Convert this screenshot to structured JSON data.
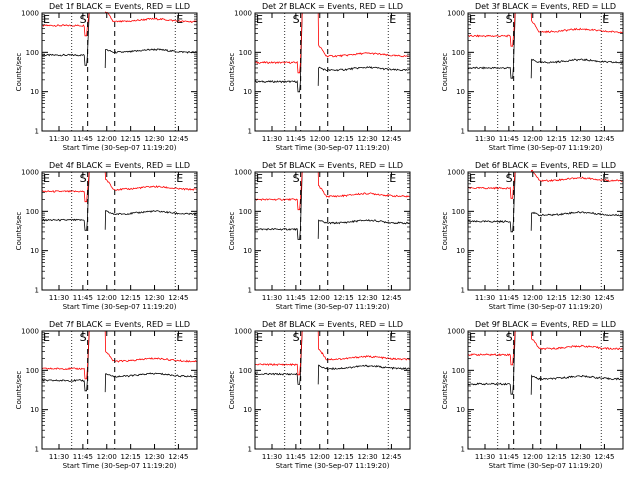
{
  "figure": {
    "xlabel": "Start Time (30-Sep-07 11:19:20)",
    "ylabel": "Counts/sec",
    "x_ticks": [
      "11:30",
      "11:45",
      "12:00",
      "12:15",
      "12:30",
      "12:45"
    ],
    "y_ticks": [
      "1",
      "10",
      "100",
      "1000"
    ],
    "markers": {
      "start": "E",
      "source": "S",
      "end": "E"
    },
    "colors": {
      "events": "#000000",
      "lld": "#ff0000",
      "axes": "#000000"
    }
  },
  "chart_data": [
    {
      "type": "line",
      "title": "Det 1f BLACK = Events, RED = LLD",
      "x_range": [
        "11:19:20",
        "12:56:40"
      ],
      "ylim": [
        1,
        1000
      ],
      "y_scale": "log",
      "series": [
        {
          "name": "Events",
          "color": "#000000",
          "levels": {
            "before": 85,
            "after": 100
          }
        },
        {
          "name": "LLD",
          "color": "#ff0000",
          "levels": {
            "before": 480,
            "after": 600
          }
        }
      ]
    },
    {
      "type": "line",
      "title": "Det 2f BLACK = Events, RED = LLD",
      "x_range": [
        "11:19:20",
        "12:56:40"
      ],
      "ylim": [
        1,
        1000
      ],
      "y_scale": "log",
      "series": [
        {
          "name": "Events",
          "color": "#000000",
          "levels": {
            "before": 18,
            "after": 35
          }
        },
        {
          "name": "LLD",
          "color": "#ff0000",
          "levels": {
            "before": 55,
            "after": 80
          }
        }
      ]
    },
    {
      "type": "line",
      "title": "Det 3f BLACK = Events, RED = LLD",
      "x_range": [
        "11:19:20",
        "12:56:40"
      ],
      "ylim": [
        1,
        1000
      ],
      "y_scale": "log",
      "series": [
        {
          "name": "Events",
          "color": "#000000",
          "levels": {
            "before": 40,
            "after": 55
          }
        },
        {
          "name": "LLD",
          "color": "#ff0000",
          "levels": {
            "before": 260,
            "after": 330
          }
        }
      ]
    },
    {
      "type": "line",
      "title": "Det 4f BLACK = Events, RED = LLD",
      "x_range": [
        "11:19:20",
        "12:56:40"
      ],
      "ylim": [
        1,
        1000
      ],
      "y_scale": "log",
      "series": [
        {
          "name": "Events",
          "color": "#000000",
          "levels": {
            "before": 60,
            "after": 85
          }
        },
        {
          "name": "LLD",
          "color": "#ff0000",
          "levels": {
            "before": 320,
            "after": 360
          }
        }
      ]
    },
    {
      "type": "line",
      "title": "Det 5f BLACK = Events, RED = LLD",
      "x_range": [
        "11:19:20",
        "12:56:40"
      ],
      "ylim": [
        1,
        1000
      ],
      "y_scale": "log",
      "series": [
        {
          "name": "Events",
          "color": "#000000",
          "levels": {
            "before": 35,
            "after": 50
          }
        },
        {
          "name": "LLD",
          "color": "#ff0000",
          "levels": {
            "before": 200,
            "after": 240
          }
        }
      ]
    },
    {
      "type": "line",
      "title": "Det 6f BLACK = Events, RED = LLD",
      "x_range": [
        "11:19:20",
        "12:56:40"
      ],
      "ylim": [
        1,
        1000
      ],
      "y_scale": "log",
      "series": [
        {
          "name": "Events",
          "color": "#000000",
          "levels": {
            "before": 55,
            "after": 80
          }
        },
        {
          "name": "LLD",
          "color": "#ff0000",
          "levels": {
            "before": 390,
            "after": 600
          }
        }
      ]
    },
    {
      "type": "line",
      "title": "Det 7f BLACK = Events, RED = LLD",
      "x_range": [
        "11:19:20",
        "12:56:40"
      ],
      "ylim": [
        1,
        1000
      ],
      "y_scale": "log",
      "series": [
        {
          "name": "Events",
          "color": "#000000",
          "levels": {
            "before": 55,
            "after": 70
          }
        },
        {
          "name": "LLD",
          "color": "#ff0000",
          "levels": {
            "before": 110,
            "after": 170
          }
        }
      ]
    },
    {
      "type": "line",
      "title": "Det 8f BLACK = Events, RED = LLD",
      "x_range": [
        "11:19:20",
        "12:56:40"
      ],
      "ylim": [
        1,
        1000
      ],
      "y_scale": "log",
      "series": [
        {
          "name": "Events",
          "color": "#000000",
          "levels": {
            "before": 80,
            "after": 110
          }
        },
        {
          "name": "LLD",
          "color": "#ff0000",
          "levels": {
            "before": 140,
            "after": 190
          }
        }
      ]
    },
    {
      "type": "line",
      "title": "Det 9f BLACK = Events, RED = LLD",
      "x_range": [
        "11:19:20",
        "12:56:40"
      ],
      "ylim": [
        1,
        1000
      ],
      "y_scale": "log",
      "series": [
        {
          "name": "Events",
          "color": "#000000",
          "levels": {
            "before": 45,
            "after": 60
          }
        },
        {
          "name": "LLD",
          "color": "#ff0000",
          "levels": {
            "before": 250,
            "after": 350
          }
        }
      ]
    }
  ]
}
